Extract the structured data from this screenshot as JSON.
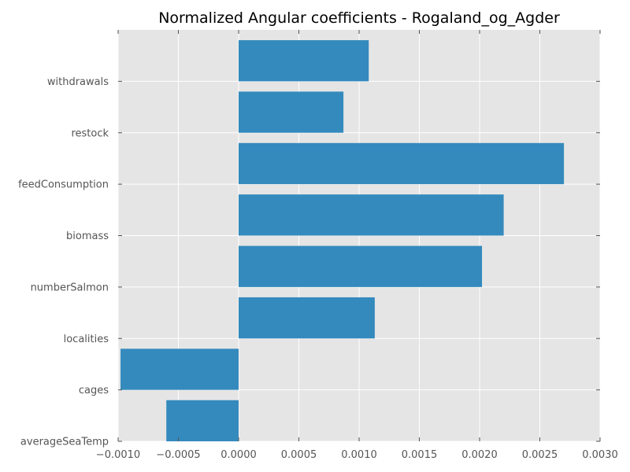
{
  "chart_data": {
    "type": "bar",
    "orientation": "horizontal",
    "title": "Normalized Angular coefficients - Rogaland_og_Agder",
    "xlabel": "",
    "ylabel": "",
    "categories": [
      "averageSeaTemp",
      "cages",
      "localities",
      "numberSalmon",
      "biomass",
      "feedConsumption",
      "restock",
      "withdrawals"
    ],
    "values": [
      -0.0006,
      -0.00098,
      0.00113,
      0.00202,
      0.0022,
      0.0027,
      0.00087,
      0.00108
    ],
    "xlim": [
      -0.001,
      0.003
    ],
    "xticks": [
      -0.001,
      -0.0005,
      0.0,
      0.0005,
      0.001,
      0.0015,
      0.002,
      0.0025,
      0.003
    ],
    "xtick_labels": [
      "−0.0010",
      "−0.0005",
      "0.0000",
      "0.0005",
      "0.0010",
      "0.0015",
      "0.0020",
      "0.0025",
      "0.0030"
    ],
    "grid": true,
    "colors": {
      "bar": "#348abd",
      "plot_background": "#e5e5e5",
      "grid": "#ffffff"
    }
  }
}
